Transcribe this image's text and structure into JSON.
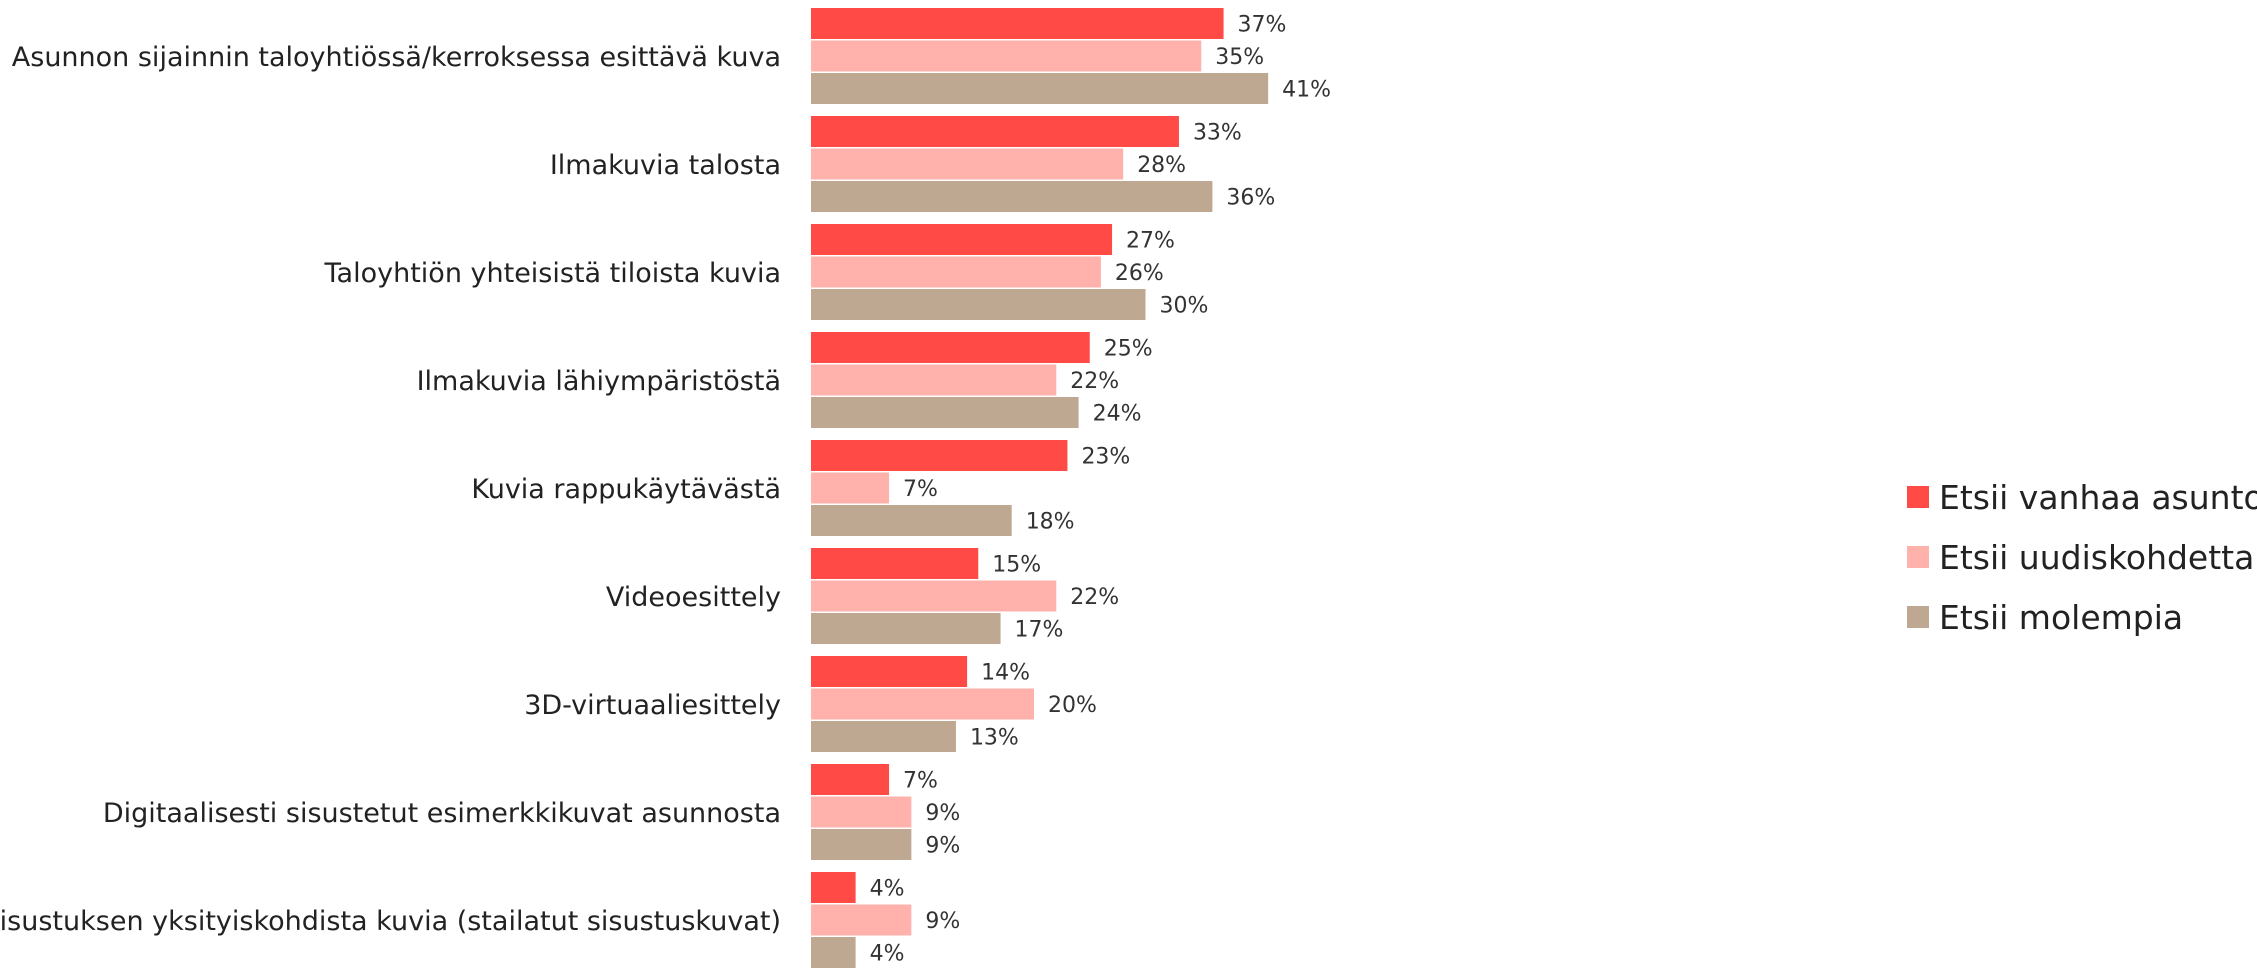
{
  "chart_data": {
    "type": "bar",
    "orientation": "horizontal",
    "categories": [
      "Asunnon sijainnin taloyhtiössä/kerroksessa esittävä kuva",
      "Ilmakuvia talosta",
      "Taloyhtiön yhteisistä tiloista kuvia",
      "Ilmakuvia lähiympäristöstä",
      "Kuvia rappukäytävästä",
      "Videoesittely",
      "3D-virtuaaliesittely",
      "Digitaalisesti sisustetut esimerkkikuvat asunnosta",
      "Sisustuksen yksityiskohdista kuvia (stailatut sisustuskuvat)"
    ],
    "series": [
      {
        "name": "Etsii vanhaa asuntoa",
        "color": "#ff4a45",
        "values": [
          37,
          33,
          27,
          25,
          23,
          15,
          14,
          7,
          4
        ]
      },
      {
        "name": "Etsii uudiskohdetta",
        "color": "#ffb1ab",
        "values": [
          35,
          28,
          26,
          22,
          7,
          22,
          20,
          9,
          9
        ]
      },
      {
        "name": "Etsii molempia",
        "color": "#bfa891",
        "values": [
          41,
          36,
          30,
          24,
          18,
          17,
          13,
          9,
          4
        ]
      }
    ],
    "value_suffix": "%",
    "xlim": [
      0,
      100
    ],
    "legend_position": "right",
    "grid": false
  }
}
